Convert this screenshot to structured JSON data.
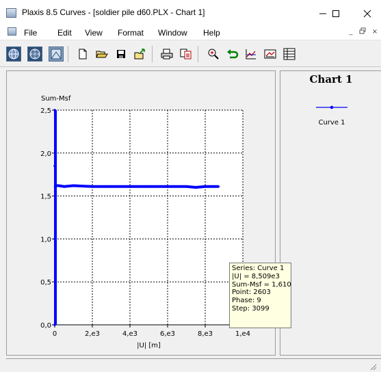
{
  "window": {
    "title": "Plaxis 8.5 Curves - [soldier pile d60.PLX - Chart 1]",
    "minimize": "—",
    "maximize": "☐",
    "close": "✕"
  },
  "menu": {
    "items": [
      "File",
      "Edit",
      "View",
      "Format",
      "Window",
      "Help"
    ],
    "mdi_minimize": "_",
    "mdi_restore": "̅",
    "mdi_close": "×"
  },
  "toolbar": {
    "buttons": [
      "globe-1",
      "globe-2",
      "globe-3",
      "new",
      "open",
      "save",
      "export",
      "print",
      "copy",
      "zoom-in",
      "undo-zoom",
      "chart-table",
      "chart-settings",
      "table"
    ]
  },
  "legend": {
    "title": "Chart 1",
    "entries": [
      {
        "name": "Curve 1",
        "color": "#0000ff"
      }
    ]
  },
  "tooltip": {
    "lines": [
      "Series: Curve 1",
      "|U| = 8,509e3",
      "Sum-Msf = 1,610",
      "Point: 2603",
      "Phase: 9",
      "Step:  3099"
    ]
  },
  "chart_data": {
    "type": "line",
    "title": "",
    "xlabel": "|U| [m]",
    "ylabel": "Sum-Msf",
    "xlim": [
      0,
      10000
    ],
    "ylim": [
      0,
      2.5
    ],
    "grid": true,
    "legend_position": "right panel",
    "x_ticks": [
      "0",
      "2,e3",
      "4,e3",
      "6,e3",
      "8,e3",
      "1,e4"
    ],
    "y_ticks": [
      "0,0",
      "0,5",
      "1,0",
      "1,5",
      "2,0",
      "2,5"
    ],
    "series": [
      {
        "name": "Curve 1",
        "color": "#0000ff",
        "x": [
          0,
          0,
          0,
          0,
          20,
          60,
          200,
          500,
          1000,
          2000,
          3000,
          4000,
          5000,
          6000,
          7000,
          7500,
          8000,
          8509,
          8700
        ],
        "y": [
          0,
          1.0,
          1.85,
          2.5,
          1.61,
          1.62,
          1.62,
          1.61,
          1.62,
          1.61,
          1.61,
          1.61,
          1.61,
          1.61,
          1.61,
          1.6,
          1.61,
          1.61,
          1.61
        ]
      }
    ]
  }
}
